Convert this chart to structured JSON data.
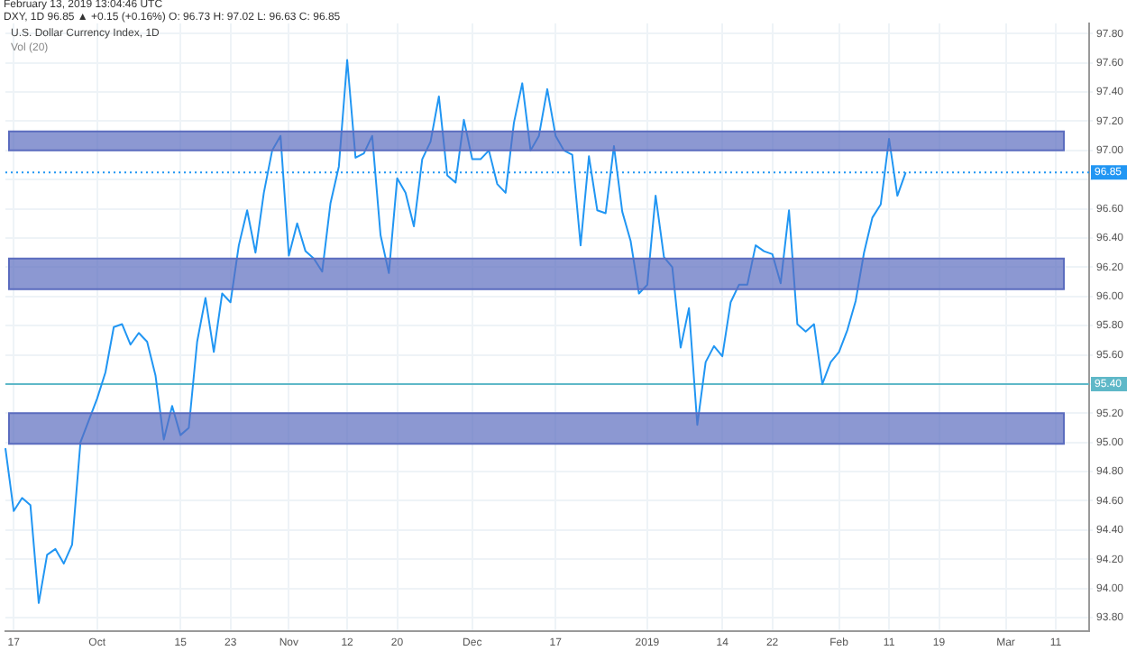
{
  "chart_data": {
    "type": "line",
    "title": "U.S. Dollar Currency Index, 1D",
    "subtitle": "Vol (20)",
    "annotations": [
      "February 13, 2019 13:04:46 UTC",
      "DXY, 1D 96.85 ▲ +0.15 (+0.16%) O: 96.73 H: 97.02 L: 96.63 C: 96.85"
    ],
    "categories": [
      null,
      "17",
      null,
      null,
      null,
      null,
      null,
      null,
      null,
      null,
      null,
      "Oct",
      null,
      null,
      null,
      null,
      null,
      null,
      null,
      null,
      null,
      "15",
      null,
      null,
      null,
      null,
      null,
      "23",
      null,
      null,
      null,
      null,
      null,
      null,
      "Nov",
      null,
      null,
      null,
      null,
      null,
      null,
      "12",
      null,
      null,
      null,
      null,
      null,
      "20",
      null,
      null,
      null,
      null,
      null,
      null,
      null,
      null,
      "Dec",
      null,
      null,
      null,
      null,
      null,
      null,
      null,
      null,
      null,
      "17",
      null,
      null,
      null,
      null,
      null,
      null,
      null,
      null,
      null,
      null,
      "2019",
      null,
      null,
      null,
      null,
      null,
      null,
      null,
      null,
      "14",
      null,
      null,
      null,
      null,
      null,
      "22",
      null,
      null,
      null,
      null,
      null,
      null,
      null,
      "Feb",
      null,
      null,
      null,
      null,
      null,
      "11",
      null,
      null,
      null,
      null,
      null,
      "19",
      null,
      null,
      null,
      null,
      null,
      null,
      null,
      "Mar",
      null,
      null,
      null,
      null,
      null,
      "11",
      null,
      null,
      null,
      null
    ],
    "series": [
      {
        "color": "#2196f3",
        "values": [
          94.96,
          94.53,
          94.62,
          94.57,
          93.9,
          94.23,
          94.27,
          94.17,
          94.3,
          95.0,
          95.15,
          95.3,
          95.48,
          95.79,
          95.81,
          95.67,
          95.75,
          95.69,
          95.46,
          95.02,
          95.25,
          95.05,
          95.1,
          95.69,
          95.99,
          95.62,
          96.02,
          95.96,
          96.35,
          96.59,
          96.3,
          96.71,
          97.0,
          97.1,
          96.28,
          96.5,
          96.31,
          96.26,
          96.17,
          96.64,
          96.89,
          97.62,
          96.95,
          96.98,
          97.1,
          96.42,
          96.16,
          96.81,
          96.71,
          96.48,
          96.94,
          97.06,
          97.37,
          96.83,
          96.78,
          97.21,
          96.94,
          96.94,
          97.0,
          96.77,
          96.71,
          97.19,
          97.46,
          97.0,
          97.1,
          97.42,
          97.1,
          97.0,
          96.97,
          96.35,
          96.96,
          96.59,
          96.57,
          97.03,
          96.58,
          96.38,
          96.02,
          96.08,
          96.69,
          96.27,
          96.2,
          95.65,
          95.92,
          95.12,
          95.55,
          95.66,
          95.59,
          95.96,
          96.08,
          96.08,
          96.35,
          96.31,
          96.29,
          96.09,
          96.59,
          95.81,
          95.76,
          95.81,
          95.4,
          95.55,
          95.62,
          95.77,
          95.97,
          96.3,
          96.54,
          96.63,
          97.08,
          96.69,
          96.85,
          null,
          null,
          null,
          null,
          null,
          null,
          null,
          null,
          null,
          null,
          null,
          null,
          null,
          null,
          null,
          null,
          null,
          null,
          null,
          null,
          null,
          null
        ]
      }
    ],
    "ylim": [
      93.71,
      97.87
    ],
    "yticks": [
      {
        "value": 93.8,
        "label": "93.80"
      },
      {
        "value": 94.0,
        "label": "94.00"
      },
      {
        "value": 94.2,
        "label": "94.20"
      },
      {
        "value": 94.4,
        "label": "94.40"
      },
      {
        "value": 94.6,
        "label": "94.60"
      },
      {
        "value": 94.8,
        "label": "94.80"
      },
      {
        "value": 95.0,
        "label": "95.00"
      },
      {
        "value": 95.2,
        "label": "95.20"
      },
      {
        "value": 95.4,
        "label": "95.40"
      },
      {
        "value": 95.6,
        "label": "95.60"
      },
      {
        "value": 95.8,
        "label": "95.80"
      },
      {
        "value": 96.0,
        "label": "96.00"
      },
      {
        "value": 96.2,
        "label": "96.20"
      },
      {
        "value": 96.4,
        "label": "96.40"
      },
      {
        "value": 96.6,
        "label": "96.60"
      },
      {
        "value": 96.8,
        "label": null
      },
      {
        "value": 97.0,
        "label": "97.00"
      },
      {
        "value": 97.2,
        "label": "97.20"
      },
      {
        "value": 97.4,
        "label": "97.40"
      },
      {
        "value": 97.6,
        "label": "97.60"
      },
      {
        "value": 97.8,
        "label": "97.80"
      }
    ],
    "bands": [
      {
        "axis": "y",
        "from": 97.0,
        "to": 97.13,
        "color": "#5b6cbf"
      },
      {
        "axis": "y",
        "from": 96.05,
        "to": 96.26,
        "color": "#5b6cbf"
      },
      {
        "axis": "y",
        "from": 94.99,
        "to": 95.2,
        "color": "#5b6cbf"
      }
    ],
    "ref_lines": [
      {
        "axis": "y",
        "value": 96.85,
        "label": "96.85",
        "color": "#2196f3",
        "line_style": "dotted"
      },
      {
        "axis": "y",
        "value": 95.4,
        "label": "95.40",
        "color": "#5fb8c8",
        "line_style": "solid"
      }
    ],
    "grid": true,
    "marker": "none",
    "line_style": "solid"
  }
}
